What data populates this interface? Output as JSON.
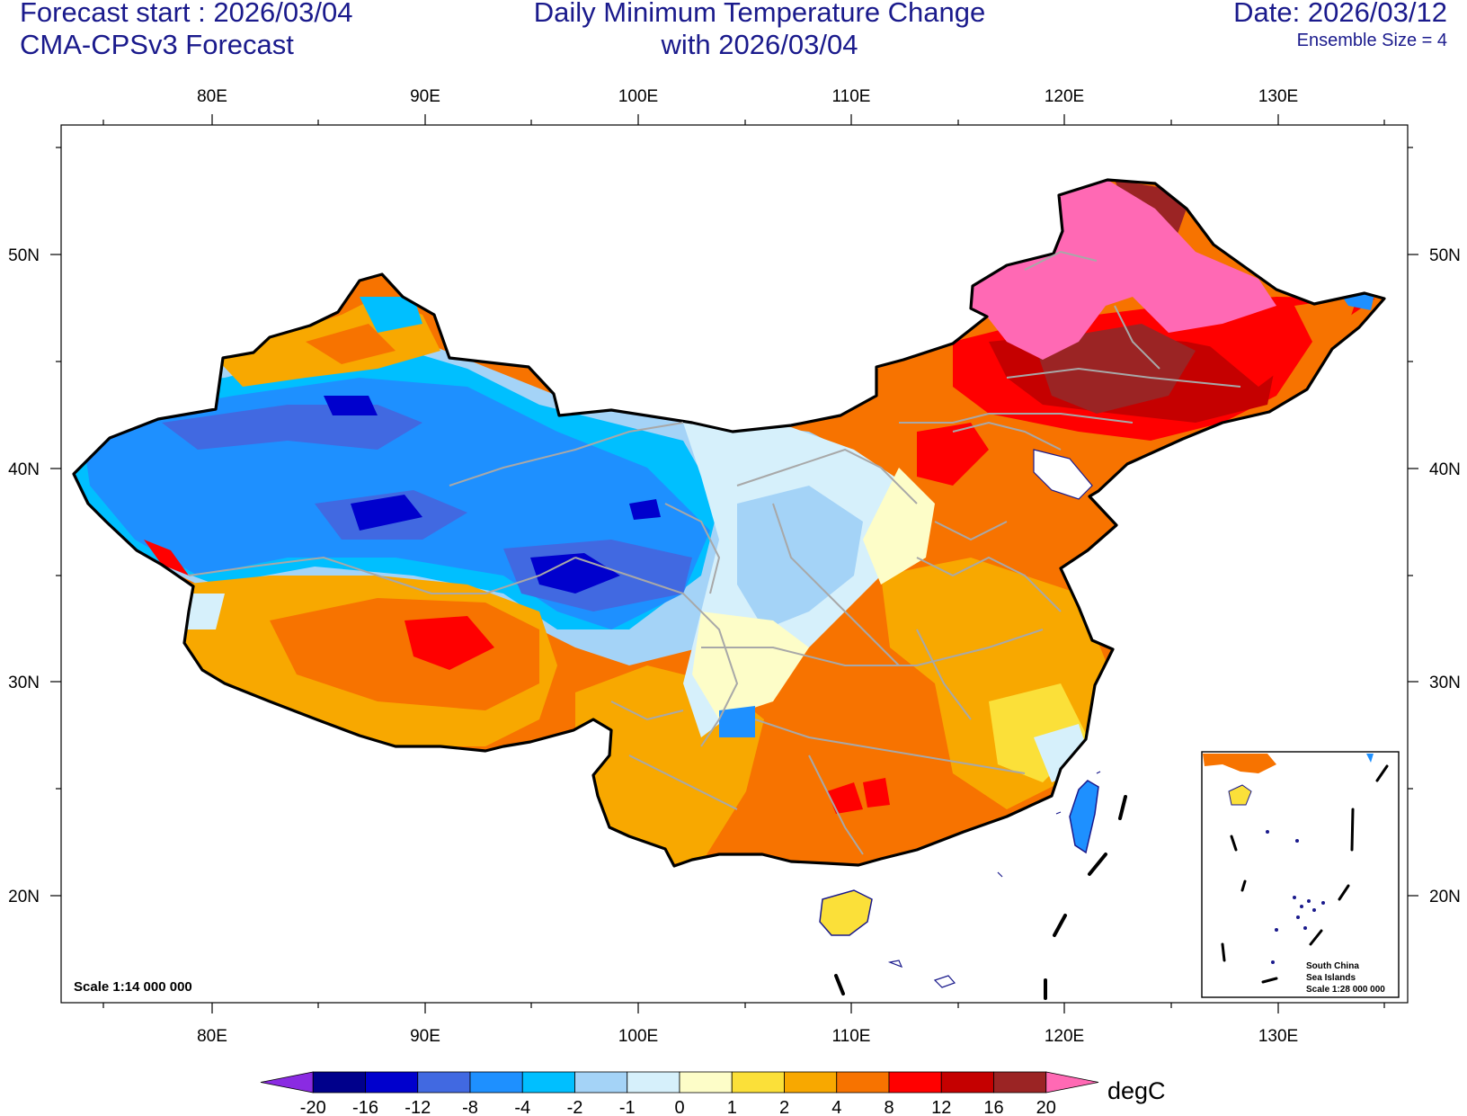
{
  "header": {
    "forecast_start": "Forecast start : 2026/03/04",
    "model": "CMA-CPSv3 Forecast",
    "title_line1": "Daily Minimum Temperature Change",
    "title_line2": "with 2026/03/04",
    "date": "Date: 2026/03/12",
    "ensemble": "Ensemble Size = 4"
  },
  "axes": {
    "lon_labels": [
      "80E",
      "90E",
      "100E",
      "110E",
      "120E",
      "130E"
    ],
    "lat_labels": [
      "50N",
      "40N",
      "30N",
      "20N"
    ]
  },
  "map": {
    "scale_label": "Scale 1:14 000 000",
    "inset": {
      "line1": "South China",
      "line2": "Sea Islands",
      "line3": "Scale 1:28 000 000"
    }
  },
  "colorbar": {
    "unit": "degC",
    "labels": [
      "-20",
      "-16",
      "-12",
      "-8",
      "-4",
      "-2",
      "-1",
      "0",
      "1",
      "2",
      "4",
      "8",
      "12",
      "16",
      "20"
    ],
    "colors": [
      "#8a2be2",
      "#00008b",
      "#0000cd",
      "#4169e1",
      "#1e90ff",
      "#00bfff",
      "#a4d3f7",
      "#d6f0fb",
      "#fdfdc8",
      "#fbe039",
      "#f8a800",
      "#f77300",
      "#ff0000",
      "#c50000",
      "#9b2424",
      "#ff69b4"
    ]
  }
}
